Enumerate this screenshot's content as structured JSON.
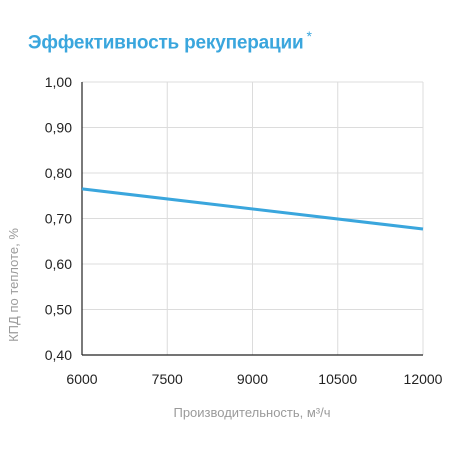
{
  "chart_data": {
    "type": "line",
    "title": "Эффективность рекуперации",
    "title_mark": "*",
    "xlabel": "Производительность, м³/ч",
    "ylabel": "КПД по теплоте, %",
    "xlim": [
      6000,
      12000
    ],
    "ylim": [
      0.4,
      1.0
    ],
    "x_ticks": [
      "6000",
      "7500",
      "9000",
      "10500",
      "12000"
    ],
    "y_ticks": [
      "0,40",
      "0,50",
      "0,60",
      "0,70",
      "0,80",
      "0,90",
      "1,00"
    ],
    "grid": true,
    "series": [
      {
        "x": [
          6000,
          12000
        ],
        "y": [
          0.765,
          0.677
        ]
      }
    ],
    "colors": {
      "line": "#3aa6dd",
      "grid": "#dcdcdc",
      "axis": "#222222"
    }
  }
}
